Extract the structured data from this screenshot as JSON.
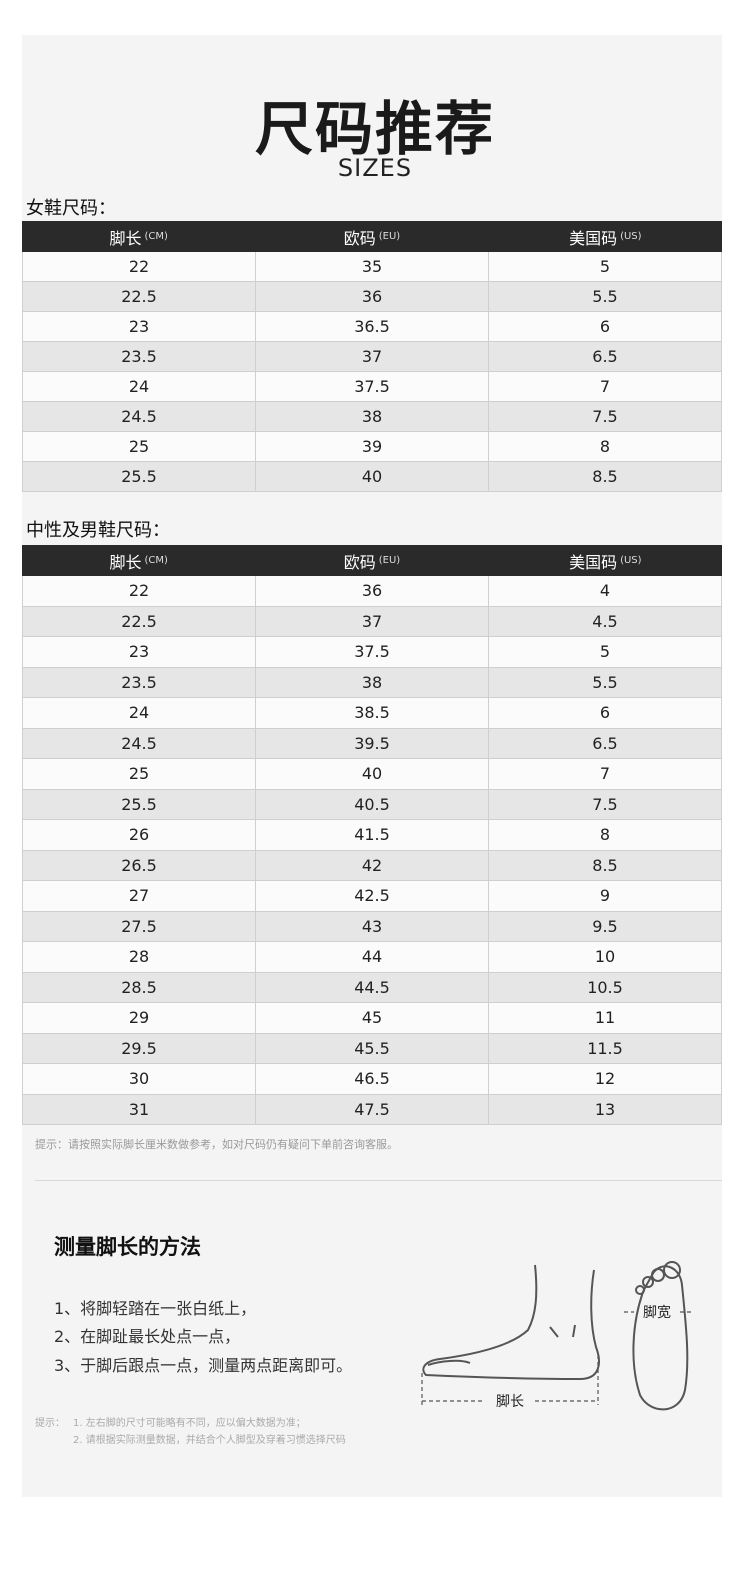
{
  "header": {
    "title": "尺码推荐",
    "subtitle": "SIZES"
  },
  "tables": [
    {
      "caption": "女鞋尺码：",
      "headers": [
        {
          "main": "脚长",
          "unit": "(CM)"
        },
        {
          "main": "欧码",
          "unit": "(EU)"
        },
        {
          "main": "美国码",
          "unit": "(US)"
        }
      ],
      "rows": [
        [
          "22",
          "35",
          "5"
        ],
        [
          "22.5",
          "36",
          "5.5"
        ],
        [
          "23",
          "36.5",
          "6"
        ],
        [
          "23.5",
          "37",
          "6.5"
        ],
        [
          "24",
          "37.5",
          "7"
        ],
        [
          "24.5",
          "38",
          "7.5"
        ],
        [
          "25",
          "39",
          "8"
        ],
        [
          "25.5",
          "40",
          "8.5"
        ]
      ]
    },
    {
      "caption": "中性及男鞋尺码：",
      "headers": [
        {
          "main": "脚长",
          "unit": "(CM)"
        },
        {
          "main": "欧码",
          "unit": "(EU)"
        },
        {
          "main": "美国码",
          "unit": "(US)"
        }
      ],
      "rows": [
        [
          "22",
          "36",
          "4"
        ],
        [
          "22.5",
          "37",
          "4.5"
        ],
        [
          "23",
          "37.5",
          "5"
        ],
        [
          "23.5",
          "38",
          "5.5"
        ],
        [
          "24",
          "38.5",
          "6"
        ],
        [
          "24.5",
          "39.5",
          "6.5"
        ],
        [
          "25",
          "40",
          "7"
        ],
        [
          "25.5",
          "40.5",
          "7.5"
        ],
        [
          "26",
          "41.5",
          "8"
        ],
        [
          "26.5",
          "42",
          "8.5"
        ],
        [
          "27",
          "42.5",
          "9"
        ],
        [
          "27.5",
          "43",
          "9.5"
        ],
        [
          "28",
          "44",
          "10"
        ],
        [
          "28.5",
          "44.5",
          "10.5"
        ],
        [
          "29",
          "45",
          "11"
        ],
        [
          "29.5",
          "45.5",
          "11.5"
        ],
        [
          "30",
          "46.5",
          "12"
        ],
        [
          "31",
          "47.5",
          "13"
        ]
      ]
    }
  ],
  "note": "提示：请按照实际脚长厘米数做参考，如对尺码仍有疑问下单前咨询客服。",
  "method": {
    "title": "测量脚长的方法",
    "steps": [
      "1、将脚轻踏在一张白纸上，",
      "2、在脚趾最长处点一点，",
      "3、于脚后跟点一点，测量两点距离即可。"
    ],
    "length_label": "脚长",
    "width_label": "脚宽",
    "tips_label": "提示：",
    "tips": [
      "1. 左右脚的尺寸可能略有不同，应以偏大数据为准；",
      "2. 请根据实际测量数据，并结合个人脚型及穿着习惯选择尺码"
    ]
  }
}
